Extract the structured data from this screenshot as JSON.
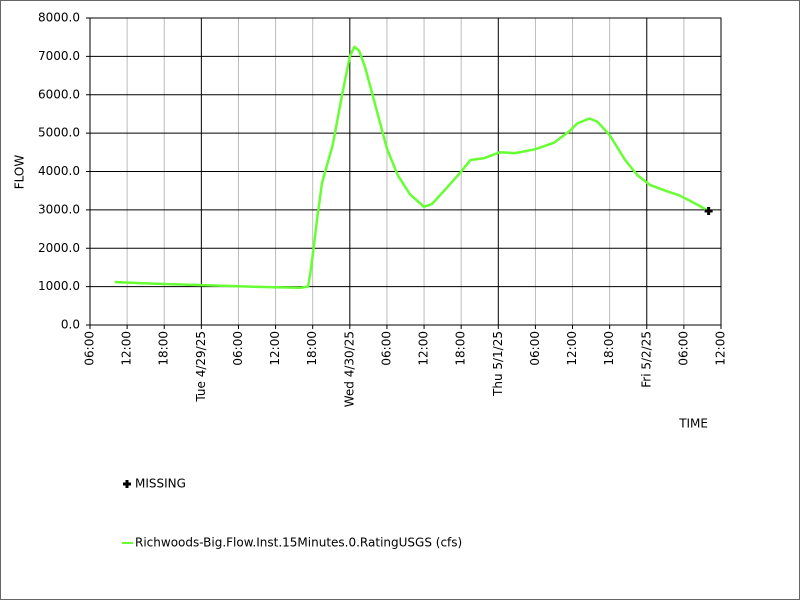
{
  "chart_data": {
    "type": "line",
    "xlabel": "TIME",
    "ylabel": "FLOW",
    "xlim": [
      "2025-04-28T06:00",
      "2025-05-02T12:00"
    ],
    "xticks": [
      {
        "value": "2025-04-28T06:00",
        "label": "06:00"
      },
      {
        "value": "2025-04-28T12:00",
        "label": "12:00"
      },
      {
        "value": "2025-04-28T18:00",
        "label": "18:00"
      },
      {
        "value": "2025-04-29T00:00",
        "label": "Tue 4/29/25"
      },
      {
        "value": "2025-04-29T06:00",
        "label": "06:00"
      },
      {
        "value": "2025-04-29T12:00",
        "label": "12:00"
      },
      {
        "value": "2025-04-29T18:00",
        "label": "18:00"
      },
      {
        "value": "2025-04-30T00:00",
        "label": "Wed 4/30/25"
      },
      {
        "value": "2025-04-30T06:00",
        "label": "06:00"
      },
      {
        "value": "2025-04-30T12:00",
        "label": "12:00"
      },
      {
        "value": "2025-04-30T18:00",
        "label": "18:00"
      },
      {
        "value": "2025-05-01T00:00",
        "label": "Thu 5/1/25"
      },
      {
        "value": "2025-05-01T06:00",
        "label": "06:00"
      },
      {
        "value": "2025-05-01T12:00",
        "label": "12:00"
      },
      {
        "value": "2025-05-01T18:00",
        "label": "18:00"
      },
      {
        "value": "2025-05-02T00:00",
        "label": "Fri 5/2/25"
      },
      {
        "value": "2025-05-02T06:00",
        "label": "06:00"
      },
      {
        "value": "2025-05-02T12:00",
        "label": "12:00"
      }
    ],
    "ylim": [
      0,
      8000
    ],
    "yticks": [
      {
        "value": 0,
        "label": "0.0"
      },
      {
        "value": 1000,
        "label": "1000.0"
      },
      {
        "value": 2000,
        "label": "2000.0"
      },
      {
        "value": 3000,
        "label": "3000.0"
      },
      {
        "value": 4000,
        "label": "4000.0"
      },
      {
        "value": 5000,
        "label": "5000.0"
      },
      {
        "value": 6000,
        "label": "6000.0"
      },
      {
        "value": 7000,
        "label": "7000.0"
      },
      {
        "value": 8000,
        "label": "8000.0"
      }
    ],
    "grid": true,
    "series": [
      {
        "name": "MISSING",
        "color": "#000000",
        "marker": "plus",
        "x": [
          "2025-05-02T10:00"
        ],
        "values": [
          2970
        ]
      },
      {
        "name": "Richwoods-Big.Flow.Inst.15Minutes.0.RatingUSGS (cfs)",
        "color": "#66ff33",
        "x": [
          "2025-04-28T10:00",
          "2025-04-28T16:00",
          "2025-04-28T22:00",
          "2025-04-29T04:00",
          "2025-04-29T10:00",
          "2025-04-29T16:00",
          "2025-04-29T17:15",
          "2025-04-29T17:45",
          "2025-04-29T18:45",
          "2025-04-29T19:30",
          "2025-04-29T21:15",
          "2025-04-29T22:45",
          "2025-04-30T00:00",
          "2025-04-30T00:45",
          "2025-04-30T01:30",
          "2025-04-30T02:30",
          "2025-04-30T04:30",
          "2025-04-30T06:00",
          "2025-04-30T07:45",
          "2025-04-30T09:45",
          "2025-04-30T12:00",
          "2025-04-30T13:15",
          "2025-04-30T15:15",
          "2025-04-30T17:45",
          "2025-04-30T19:30",
          "2025-04-30T21:45",
          "2025-05-01T00:15",
          "2025-05-01T02:45",
          "2025-05-01T06:00",
          "2025-05-01T09:00",
          "2025-05-01T11:30",
          "2025-05-01T12:45",
          "2025-05-01T14:45",
          "2025-05-01T16:00",
          "2025-05-01T18:00",
          "2025-05-01T20:30",
          "2025-05-01T22:30",
          "2025-05-02T00:30",
          "2025-05-02T03:00",
          "2025-05-02T05:15",
          "2025-05-02T08:15",
          "2025-05-02T10:00"
        ],
        "values": [
          1120,
          1080,
          1050,
          1020,
          990,
          970,
          1000,
          1500,
          2800,
          3700,
          4700,
          6000,
          7000,
          7250,
          7150,
          6700,
          5500,
          4600,
          3900,
          3400,
          3080,
          3150,
          3500,
          3950,
          4300,
          4350,
          4500,
          4480,
          4580,
          4750,
          5050,
          5250,
          5380,
          5300,
          4950,
          4300,
          3900,
          3650,
          3500,
          3380,
          3130,
          2970
        ]
      }
    ]
  }
}
